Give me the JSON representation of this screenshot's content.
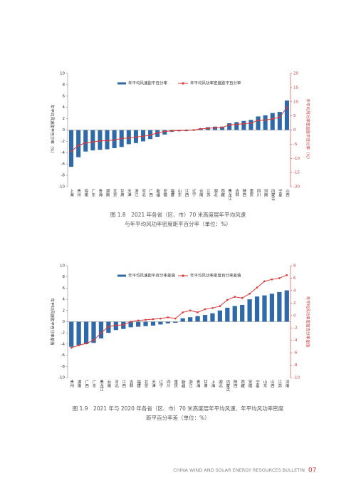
{
  "chart_data": [
    {
      "type": "bar-line",
      "categories": [
        "上海",
        "贵州",
        "海南",
        "广东",
        "青海",
        "湖南",
        "北京",
        "甘肃",
        "天津",
        "浙江",
        "河北",
        "广西",
        "新疆",
        "安徽",
        "福建",
        "山东",
        "江西",
        "辽宁",
        "云南",
        "江苏",
        "湖北",
        "西藏",
        "黑龙江",
        "吉林",
        "陕西",
        "重庆",
        "四川",
        "河南",
        "内蒙古",
        "宁夏",
        "山西"
      ],
      "series": [
        {
          "name": "年平均风速距平百分率",
          "color": "#2f69a8",
          "values": [
            -6.5,
            -4.8,
            -3.8,
            -3.6,
            -3.5,
            -3.4,
            -3.2,
            -3.0,
            -2.5,
            -2.3,
            -2.0,
            -1.6,
            -1.2,
            -0.8,
            -0.3,
            -0.2,
            -0.2,
            -0.1,
            0.3,
            0.5,
            0.6,
            0.6,
            1.2,
            1.4,
            1.6,
            1.8,
            2.4,
            2.6,
            3.0,
            3.2,
            5.2
          ]
        },
        {
          "name": "年平均风功率密度距平百分率",
          "color": "#d9383a",
          "axis": "y2",
          "values": [
            -7.5,
            -5.5,
            -4.5,
            -4.2,
            -3.8,
            -3.8,
            -3.5,
            -3.0,
            -2.8,
            -2.5,
            -2.2,
            -1.8,
            -1.0,
            -0.5,
            -0.3,
            -0.2,
            -0.1,
            0,
            0.4,
            0.6,
            0.8,
            0.9,
            1.8,
            2.0,
            2.2,
            2.5,
            3.4,
            3.5,
            4.0,
            4.5,
            8.0
          ]
        }
      ],
      "y_label": "年平均风速距平百分率（%）",
      "y2_label": "年平均风功率密度距平百分率（%）",
      "ylim": [
        -10,
        10
      ],
      "yticks": [
        -10,
        -8,
        -6,
        -4,
        -2,
        0,
        2,
        4,
        6,
        8,
        10
      ],
      "y2lim": [
        -20,
        20
      ],
      "y2ticks": [
        -20,
        -15,
        -10,
        -5,
        0,
        5,
        10,
        15,
        20
      ]
    },
    {
      "type": "bar-line",
      "categories": [
        "贵州",
        "湖南",
        "广西",
        "广东",
        "黑龙江",
        "云南",
        "河北",
        "江西",
        "吉林",
        "福建",
        "北京",
        "天津",
        "辽宁",
        "四川",
        "重庆",
        "新疆",
        "浙江",
        "青海",
        "甘肃",
        "上海",
        "湖北",
        "内蒙古",
        "陕西",
        "西藏",
        "安徽",
        "宁夏",
        "山东",
        "山西",
        "江苏",
        "河南"
      ],
      "series": [
        {
          "name": "年平均风速距平百分率差值",
          "color": "#2f69a8",
          "values": [
            -4.5,
            -4.2,
            -4.0,
            -3.8,
            -3.0,
            -2.0,
            -1.5,
            -1.3,
            -1.0,
            -0.9,
            -0.8,
            -0.7,
            -0.5,
            -0.3,
            -0.2,
            0.6,
            0.8,
            1.0,
            1.2,
            1.5,
            2.0,
            2.5,
            2.8,
            3.0,
            4.0,
            4.5,
            4.7,
            5.0,
            5.3,
            5.6
          ]
        },
        {
          "name": "年平均风功率密度百分率差值",
          "color": "#d9383a",
          "axis": "y2",
          "values": [
            -5.2,
            -4.8,
            -4.5,
            -4.0,
            -2.8,
            -1.8,
            -1.6,
            -1.5,
            -1.0,
            -0.8,
            -0.7,
            -0.6,
            -0.5,
            -0.3,
            -0.5,
            0.5,
            0.8,
            0.5,
            1.0,
            1.2,
            1.5,
            2.5,
            3.0,
            2.8,
            3.5,
            4.5,
            5.5,
            5.8,
            6.0,
            6.5
          ]
        }
      ],
      "y_label": "年平均风速距平百分率差值",
      "y2_label": "年平均风功率密度百分率差值",
      "ylim": [
        -10,
        10
      ],
      "yticks": [
        -10,
        -8,
        -6,
        -4,
        -2,
        0,
        2,
        4,
        6,
        8,
        10
      ],
      "y2lim": [
        -10,
        8
      ],
      "y2ticks": [
        -10,
        -8,
        -6,
        -4,
        -2,
        0,
        2,
        4,
        6,
        8
      ]
    }
  ],
  "captions": [
    [
      "图 1.8　2021 年各省（区、市）70 米高度层年平均风速",
      "与年平均风功率密度距平百分率（单位：%）"
    ],
    [
      "图 1.9　2021 年与 2020 年各省（区、市）70 米高度层年平均风速、年平均风功率密度",
      "距平百分率差（单位：%）"
    ]
  ],
  "footer": {
    "text": "CHINA WIND AND SOLAR ENERGY RESOURCES BULLETIN",
    "page": "07"
  }
}
